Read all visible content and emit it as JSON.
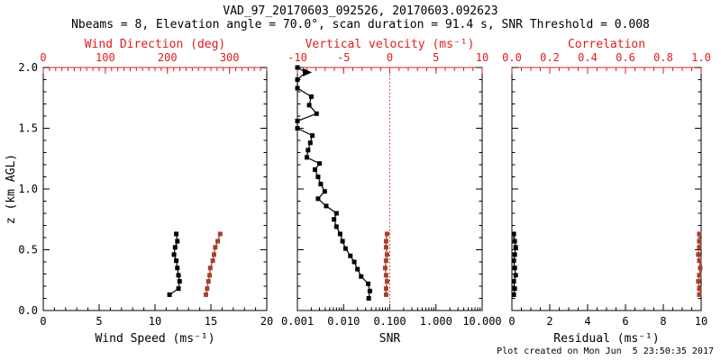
{
  "header": {
    "title": "VAD_97_20170603_092526, 20170603.092623",
    "subtitle": "Nbeams = 8, Elevation angle = 70.0°, scan duration = 91.4 s, SNR Threshold = 0.008"
  },
  "footer": {
    "created_text": "Plot created on Mon Jun  5 23:50:35 2017"
  },
  "colors": {
    "background": "#ffffff",
    "black": "#000000",
    "axis_red": "#dd1c1c",
    "marker_red": "#a8402c"
  },
  "y_axis": {
    "label": "z (km AGL)",
    "lim": [
      0,
      2
    ],
    "ticks": [
      0,
      0.5,
      1,
      1.5,
      2
    ],
    "tick_labels": [
      "0.0",
      "0.5",
      "1.0",
      "1.5",
      "2.0"
    ],
    "minor_step": 0.1
  },
  "chart_data": [
    {
      "type": "line",
      "name": "wind-panel",
      "grid": false,
      "legend": "none",
      "bottom_axis": {
        "label": "Wind Speed (ms⁻¹)",
        "lim": [
          0,
          20
        ],
        "ticks": [
          0,
          5,
          10,
          15,
          20
        ],
        "minor_step": 1,
        "color": "black"
      },
      "top_axis": {
        "label": "Wind Direction (deg)",
        "lim": [
          0,
          360
        ],
        "ticks": [
          0,
          100,
          200,
          300
        ],
        "minor_step": 10,
        "color": "red"
      },
      "series": [
        {
          "name": "wind-speed",
          "axis": "bottom",
          "color": "black",
          "marker": "square",
          "z": [
            0.13,
            0.18,
            0.24,
            0.29,
            0.35,
            0.41,
            0.46,
            0.52,
            0.57,
            0.63
          ],
          "values": [
            11.3,
            12.1,
            12.2,
            12.1,
            12.0,
            11.9,
            11.7,
            11.8,
            12.0,
            11.9
          ]
        },
        {
          "name": "wind-direction",
          "axis": "top",
          "color": "red",
          "marker": "square",
          "z": [
            0.13,
            0.18,
            0.24,
            0.29,
            0.35,
            0.41,
            0.46,
            0.52,
            0.57,
            0.63
          ],
          "values": [
            262,
            264,
            266,
            268,
            269,
            273,
            275,
            277,
            281,
            285
          ]
        }
      ]
    },
    {
      "type": "line",
      "name": "snr-panel",
      "grid": false,
      "legend": "none",
      "bottom_axis": {
        "label": "SNR",
        "scale": "log",
        "lim": [
          0.001,
          10
        ],
        "ticks": [
          0.001,
          0.01,
          0.1,
          1,
          10
        ],
        "tick_labels": [
          "0.001",
          "0.010",
          "0.100",
          "1.000",
          "10.000"
        ],
        "color": "black"
      },
      "top_axis": {
        "label": "Vertical velocity (ms⁻¹)",
        "lim": [
          -10,
          10
        ],
        "ticks": [
          -10,
          -5,
          0,
          5,
          10
        ],
        "minor_step": 1,
        "color": "red"
      },
      "ref_line": {
        "axis": "top",
        "value": 0,
        "style": "dotted",
        "color": "red"
      },
      "series": [
        {
          "name": "snr",
          "axis": "bottom",
          "color": "black",
          "marker": "square",
          "start_arrow": true,
          "arrow_index": 1,
          "z": [
            2.0,
            1.96,
            1.9,
            1.83,
            1.76,
            1.69,
            1.62,
            1.56,
            1.5,
            1.44,
            1.38,
            1.32,
            1.26,
            1.21,
            1.16,
            1.1,
            1.04,
            0.98,
            0.92,
            0.86,
            0.8,
            0.75,
            0.69,
            0.63,
            0.57,
            0.51,
            0.45,
            0.4,
            0.34,
            0.28,
            0.22,
            0.16,
            0.1
          ],
          "values": [
            0.001,
            0.0015,
            0.001,
            0.001,
            0.002,
            0.0018,
            0.0026,
            0.001,
            0.001,
            0.0021,
            0.0019,
            0.0017,
            0.0016,
            0.003,
            0.0024,
            0.0028,
            0.0032,
            0.0039,
            0.0028,
            0.0042,
            0.007,
            0.0062,
            0.007,
            0.0084,
            0.0095,
            0.011,
            0.014,
            0.017,
            0.02,
            0.024,
            0.034,
            0.037,
            0.035
          ]
        },
        {
          "name": "vertical-velocity",
          "axis": "top",
          "color": "red",
          "marker": "square",
          "z": [
            0.13,
            0.18,
            0.24,
            0.29,
            0.35,
            0.41,
            0.46,
            0.52,
            0.57,
            0.63
          ],
          "values": [
            -0.4,
            -0.4,
            -0.3,
            -0.4,
            -0.5,
            -0.4,
            -0.3,
            -0.4,
            -0.4,
            -0.3
          ]
        }
      ]
    },
    {
      "type": "line",
      "name": "residual-panel",
      "grid": false,
      "legend": "none",
      "bottom_axis": {
        "label": "Residual (ms⁻¹)",
        "lim": [
          0,
          10
        ],
        "ticks": [
          0,
          2,
          4,
          6,
          8,
          10
        ],
        "minor_step": 0.5,
        "color": "black"
      },
      "top_axis": {
        "label": "Correlation",
        "lim": [
          0,
          1
        ],
        "ticks": [
          0,
          0.2,
          0.4,
          0.6,
          0.8,
          1
        ],
        "tick_labels": [
          "0.0",
          "0.2",
          "0.4",
          "0.6",
          "0.8",
          "1.0"
        ],
        "minor_step": 0.05,
        "color": "red"
      },
      "series": [
        {
          "name": "residual",
          "axis": "bottom",
          "color": "black",
          "marker": "square",
          "z": [
            0.13,
            0.18,
            0.24,
            0.29,
            0.35,
            0.41,
            0.46,
            0.52,
            0.57,
            0.63
          ],
          "values": [
            0.1,
            0.15,
            0.1,
            0.2,
            0.15,
            0.1,
            0.15,
            0.2,
            0.15,
            0.1
          ]
        },
        {
          "name": "correlation",
          "axis": "top",
          "color": "red",
          "marker": "square",
          "z": [
            0.13,
            0.18,
            0.24,
            0.29,
            0.35,
            0.41,
            0.46,
            0.52,
            0.57,
            0.63
          ],
          "values": [
            0.99,
            0.99,
            0.985,
            0.99,
            0.995,
            0.99,
            0.985,
            0.99,
            0.99,
            0.99
          ]
        }
      ]
    }
  ]
}
